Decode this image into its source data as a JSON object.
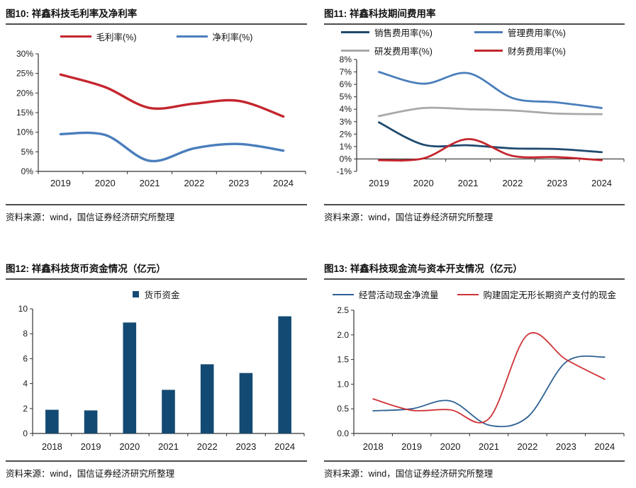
{
  "figures": [
    {
      "title": "图10: 祥鑫科技毛利率及净利率",
      "source": "资料来源：wind，国信证券经济研究所整理"
    },
    {
      "title": "图11: 祥鑫科技期间费用率",
      "source": "资料来源：wind，国信证券经济研究所整理"
    },
    {
      "title": "图12: 祥鑫科技货币资金情况（亿元）",
      "source": "资料来源：wind，国信证券经济研究所整理"
    },
    {
      "title": "图13: 祥鑫科技现金流与资本开支情况（亿元）",
      "source": "资料来源：wind，国信证券经济研究所整理"
    }
  ],
  "chart_data": [
    {
      "type": "line",
      "title": "祥鑫科技毛利率及净利率",
      "categories": [
        "2019",
        "2020",
        "2021",
        "2022",
        "2023",
        "2024"
      ],
      "series": [
        {
          "name": "毛利率(%)",
          "color": "#c4262e",
          "values": [
            24.7,
            21.5,
            16.2,
            17.3,
            18.0,
            14.0
          ]
        },
        {
          "name": "净利率(%)",
          "color": "#4a7ebc",
          "values": [
            9.5,
            9.3,
            2.7,
            5.9,
            7.0,
            5.3
          ]
        }
      ],
      "ylim": [
        0,
        30
      ],
      "ytick": 5,
      "y_suffix": "%",
      "grid": false,
      "legend_position": "top",
      "stroke": 3.4
    },
    {
      "type": "line",
      "title": "祥鑫科技期间费用率",
      "categories": [
        "2019",
        "2020",
        "2021",
        "2022",
        "2023",
        "2024"
      ],
      "series": [
        {
          "name": "销售费用率(%)",
          "color": "#1f4a6e",
          "values": [
            2.95,
            1.15,
            1.1,
            0.85,
            0.8,
            0.55
          ]
        },
        {
          "name": "管理费用率(%)",
          "color": "#4a7ebc",
          "values": [
            7.0,
            6.05,
            6.9,
            4.9,
            4.55,
            4.1
          ]
        },
        {
          "name": "研发费用率(%)",
          "color": "#a8a8a8",
          "values": [
            3.45,
            4.1,
            4.0,
            3.9,
            3.65,
            3.6
          ]
        },
        {
          "name": "财务费用率(%)",
          "color": "#c4262e",
          "values": [
            -0.1,
            0.05,
            1.6,
            0.25,
            0.15,
            -0.1
          ]
        }
      ],
      "ylim": [
        -1,
        8
      ],
      "ytick": 1,
      "y_suffix": "%",
      "grid": false,
      "legend_position": "top",
      "stroke": 2.8
    },
    {
      "type": "bar",
      "title": "祥鑫科技货币资金情况（亿元）",
      "legend_label": "货币资金",
      "color": "#134a73",
      "categories": [
        "2018",
        "2019",
        "2020",
        "2021",
        "2022",
        "2023",
        "2024"
      ],
      "values": [
        1.9,
        1.85,
        8.9,
        3.5,
        5.55,
        4.85,
        9.4
      ],
      "ylim": [
        0,
        10
      ],
      "ytick": 2,
      "grid": false,
      "legend_position": "top"
    },
    {
      "type": "line",
      "title": "祥鑫科技现金流与资本开支情况（亿元）",
      "categories": [
        "2018",
        "2019",
        "2020",
        "2021",
        "2022",
        "2023",
        "2024"
      ],
      "series": [
        {
          "name": "经营活动现金净流量",
          "color": "#2e6093",
          "values": [
            0.46,
            0.5,
            0.66,
            0.17,
            0.33,
            1.45,
            1.55
          ]
        },
        {
          "name": "购建固定无形长期资产支付的现金",
          "color": "#cf3338",
          "values": [
            0.7,
            0.47,
            0.48,
            0.3,
            2.0,
            1.5,
            1.1
          ]
        }
      ],
      "ylim": [
        0,
        2.5
      ],
      "ytick": 0.5,
      "y_decimals": 1,
      "grid": false,
      "legend_position": "top",
      "stroke": 1.8
    }
  ]
}
